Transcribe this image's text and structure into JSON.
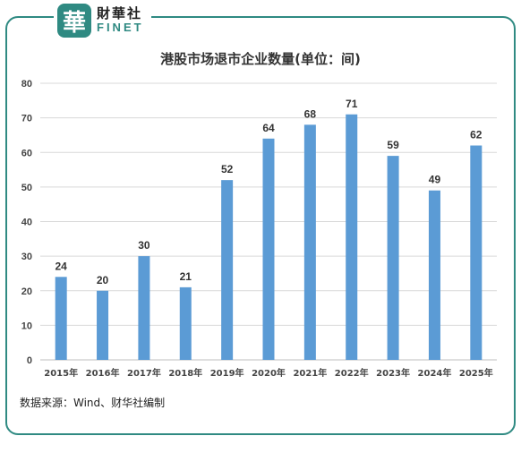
{
  "brand": {
    "badge": "華",
    "name_cn": "財華社",
    "name_en": "FINET"
  },
  "colors": {
    "bar": "#5b9bd5",
    "accent": "#2f8a82",
    "grid": "#d9d9d9"
  },
  "source": "数据来源：Wind、财华社编制",
  "chart_data": {
    "type": "bar",
    "title": "港股市场退市企业数量(单位：间)",
    "xlabel": "",
    "ylabel": "",
    "categories": [
      "2015年",
      "2016年",
      "2017年",
      "2018年",
      "2019年",
      "2020年",
      "2021年",
      "2022年",
      "2023年",
      "2024年",
      "2025年"
    ],
    "values": [
      24,
      20,
      30,
      21,
      52,
      64,
      68,
      71,
      59,
      49,
      62
    ],
    "ylim": [
      0,
      80
    ],
    "yticks": [
      0,
      10,
      20,
      30,
      40,
      50,
      60,
      70,
      80
    ],
    "grid": true,
    "data_labels": true
  }
}
